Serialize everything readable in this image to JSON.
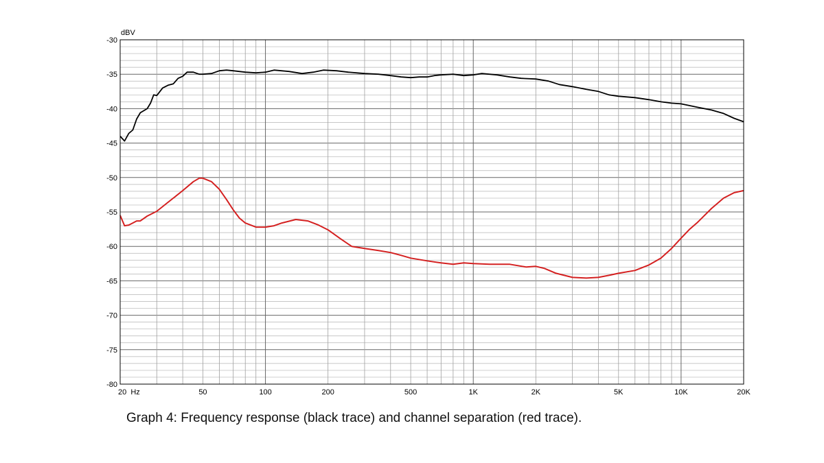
{
  "caption": "Graph 4: Frequency response (black trace) and channel separation (red trace).",
  "chart_data": {
    "type": "line",
    "x_scale": "log",
    "xlim": [
      20,
      20000
    ],
    "ylim": [
      -80,
      -30
    ],
    "grid": true,
    "ylabel": "dBV",
    "x_ticks": [
      {
        "value": 20,
        "label": "20  Hz"
      },
      {
        "value": 50,
        "label": "50"
      },
      {
        "value": 100,
        "label": "100"
      },
      {
        "value": 200,
        "label": "200"
      },
      {
        "value": 500,
        "label": "500"
      },
      {
        "value": 1000,
        "label": "1K"
      },
      {
        "value": 2000,
        "label": "2K"
      },
      {
        "value": 5000,
        "label": "5K"
      },
      {
        "value": 10000,
        "label": "10K"
      },
      {
        "value": 20000,
        "label": "20K"
      }
    ],
    "y_ticks": [
      -30,
      -35,
      -40,
      -45,
      -50,
      -55,
      -60,
      -65,
      -70,
      -75,
      -80
    ],
    "series": [
      {
        "color": "#000000",
        "points": [
          [
            20,
            -44
          ],
          [
            21,
            -44.7
          ],
          [
            22,
            -43.6
          ],
          [
            23,
            -43.1
          ],
          [
            24,
            -41.5
          ],
          [
            25,
            -40.6
          ],
          [
            27,
            -40
          ],
          [
            28,
            -39.2
          ],
          [
            29,
            -38
          ],
          [
            30,
            -38.1
          ],
          [
            32,
            -37
          ],
          [
            34,
            -36.6
          ],
          [
            36,
            -36.4
          ],
          [
            38,
            -35.6
          ],
          [
            40,
            -35.3
          ],
          [
            42,
            -34.7
          ],
          [
            45,
            -34.7
          ],
          [
            48,
            -35
          ],
          [
            50,
            -35
          ],
          [
            55,
            -34.9
          ],
          [
            60,
            -34.5
          ],
          [
            65,
            -34.4
          ],
          [
            70,
            -34.5
          ],
          [
            80,
            -34.7
          ],
          [
            90,
            -34.8
          ],
          [
            100,
            -34.7
          ],
          [
            110,
            -34.4
          ],
          [
            130,
            -34.6
          ],
          [
            150,
            -34.9
          ],
          [
            170,
            -34.7
          ],
          [
            190,
            -34.4
          ],
          [
            220,
            -34.5
          ],
          [
            250,
            -34.7
          ],
          [
            300,
            -34.9
          ],
          [
            350,
            -35
          ],
          [
            400,
            -35.2
          ],
          [
            450,
            -35.4
          ],
          [
            500,
            -35.5
          ],
          [
            550,
            -35.4
          ],
          [
            600,
            -35.4
          ],
          [
            650,
            -35.2
          ],
          [
            700,
            -35.1
          ],
          [
            800,
            -35
          ],
          [
            900,
            -35.2
          ],
          [
            1000,
            -35.1
          ],
          [
            1100,
            -34.9
          ],
          [
            1300,
            -35.1
          ],
          [
            1500,
            -35.4
          ],
          [
            1700,
            -35.6
          ],
          [
            2000,
            -35.7
          ],
          [
            2300,
            -36
          ],
          [
            2600,
            -36.5
          ],
          [
            3000,
            -36.8
          ],
          [
            3500,
            -37.2
          ],
          [
            4000,
            -37.5
          ],
          [
            4500,
            -38
          ],
          [
            5000,
            -38.2
          ],
          [
            6000,
            -38.4
          ],
          [
            7000,
            -38.7
          ],
          [
            8000,
            -39
          ],
          [
            9000,
            -39.2
          ],
          [
            10000,
            -39.3
          ],
          [
            12000,
            -39.8
          ],
          [
            14000,
            -40.2
          ],
          [
            16000,
            -40.7
          ],
          [
            18000,
            -41.4
          ],
          [
            20000,
            -41.9
          ]
        ]
      },
      {
        "color": "#d42020",
        "points": [
          [
            20,
            -55.5
          ],
          [
            21,
            -57
          ],
          [
            22,
            -56.9
          ],
          [
            23,
            -56.6
          ],
          [
            24,
            -56.3
          ],
          [
            25,
            -56.3
          ],
          [
            27,
            -55.6
          ],
          [
            30,
            -54.9
          ],
          [
            33,
            -53.9
          ],
          [
            36,
            -53
          ],
          [
            40,
            -51.9
          ],
          [
            45,
            -50.6
          ],
          [
            48,
            -50.1
          ],
          [
            50,
            -50.1
          ],
          [
            55,
            -50.6
          ],
          [
            60,
            -51.7
          ],
          [
            65,
            -53.2
          ],
          [
            70,
            -54.7
          ],
          [
            75,
            -55.9
          ],
          [
            80,
            -56.6
          ],
          [
            90,
            -57.2
          ],
          [
            100,
            -57.2
          ],
          [
            110,
            -57
          ],
          [
            120,
            -56.6
          ],
          [
            140,
            -56.1
          ],
          [
            160,
            -56.3
          ],
          [
            180,
            -56.9
          ],
          [
            200,
            -57.6
          ],
          [
            230,
            -58.9
          ],
          [
            260,
            -60
          ],
          [
            300,
            -60.3
          ],
          [
            350,
            -60.6
          ],
          [
            400,
            -60.9
          ],
          [
            450,
            -61.3
          ],
          [
            500,
            -61.7
          ],
          [
            600,
            -62.1
          ],
          [
            700,
            -62.4
          ],
          [
            800,
            -62.6
          ],
          [
            900,
            -62.4
          ],
          [
            1000,
            -62.5
          ],
          [
            1200,
            -62.6
          ],
          [
            1500,
            -62.6
          ],
          [
            1800,
            -63
          ],
          [
            2000,
            -62.9
          ],
          [
            2200,
            -63.2
          ],
          [
            2500,
            -63.9
          ],
          [
            3000,
            -64.5
          ],
          [
            3500,
            -64.6
          ],
          [
            4000,
            -64.5
          ],
          [
            4500,
            -64.2
          ],
          [
            5000,
            -63.9
          ],
          [
            6000,
            -63.5
          ],
          [
            7000,
            -62.7
          ],
          [
            8000,
            -61.7
          ],
          [
            9000,
            -60.3
          ],
          [
            10000,
            -58.8
          ],
          [
            11000,
            -57.5
          ],
          [
            12000,
            -56.5
          ],
          [
            14000,
            -54.5
          ],
          [
            16000,
            -53
          ],
          [
            18000,
            -52.2
          ],
          [
            20000,
            -51.9
          ]
        ]
      }
    ]
  }
}
